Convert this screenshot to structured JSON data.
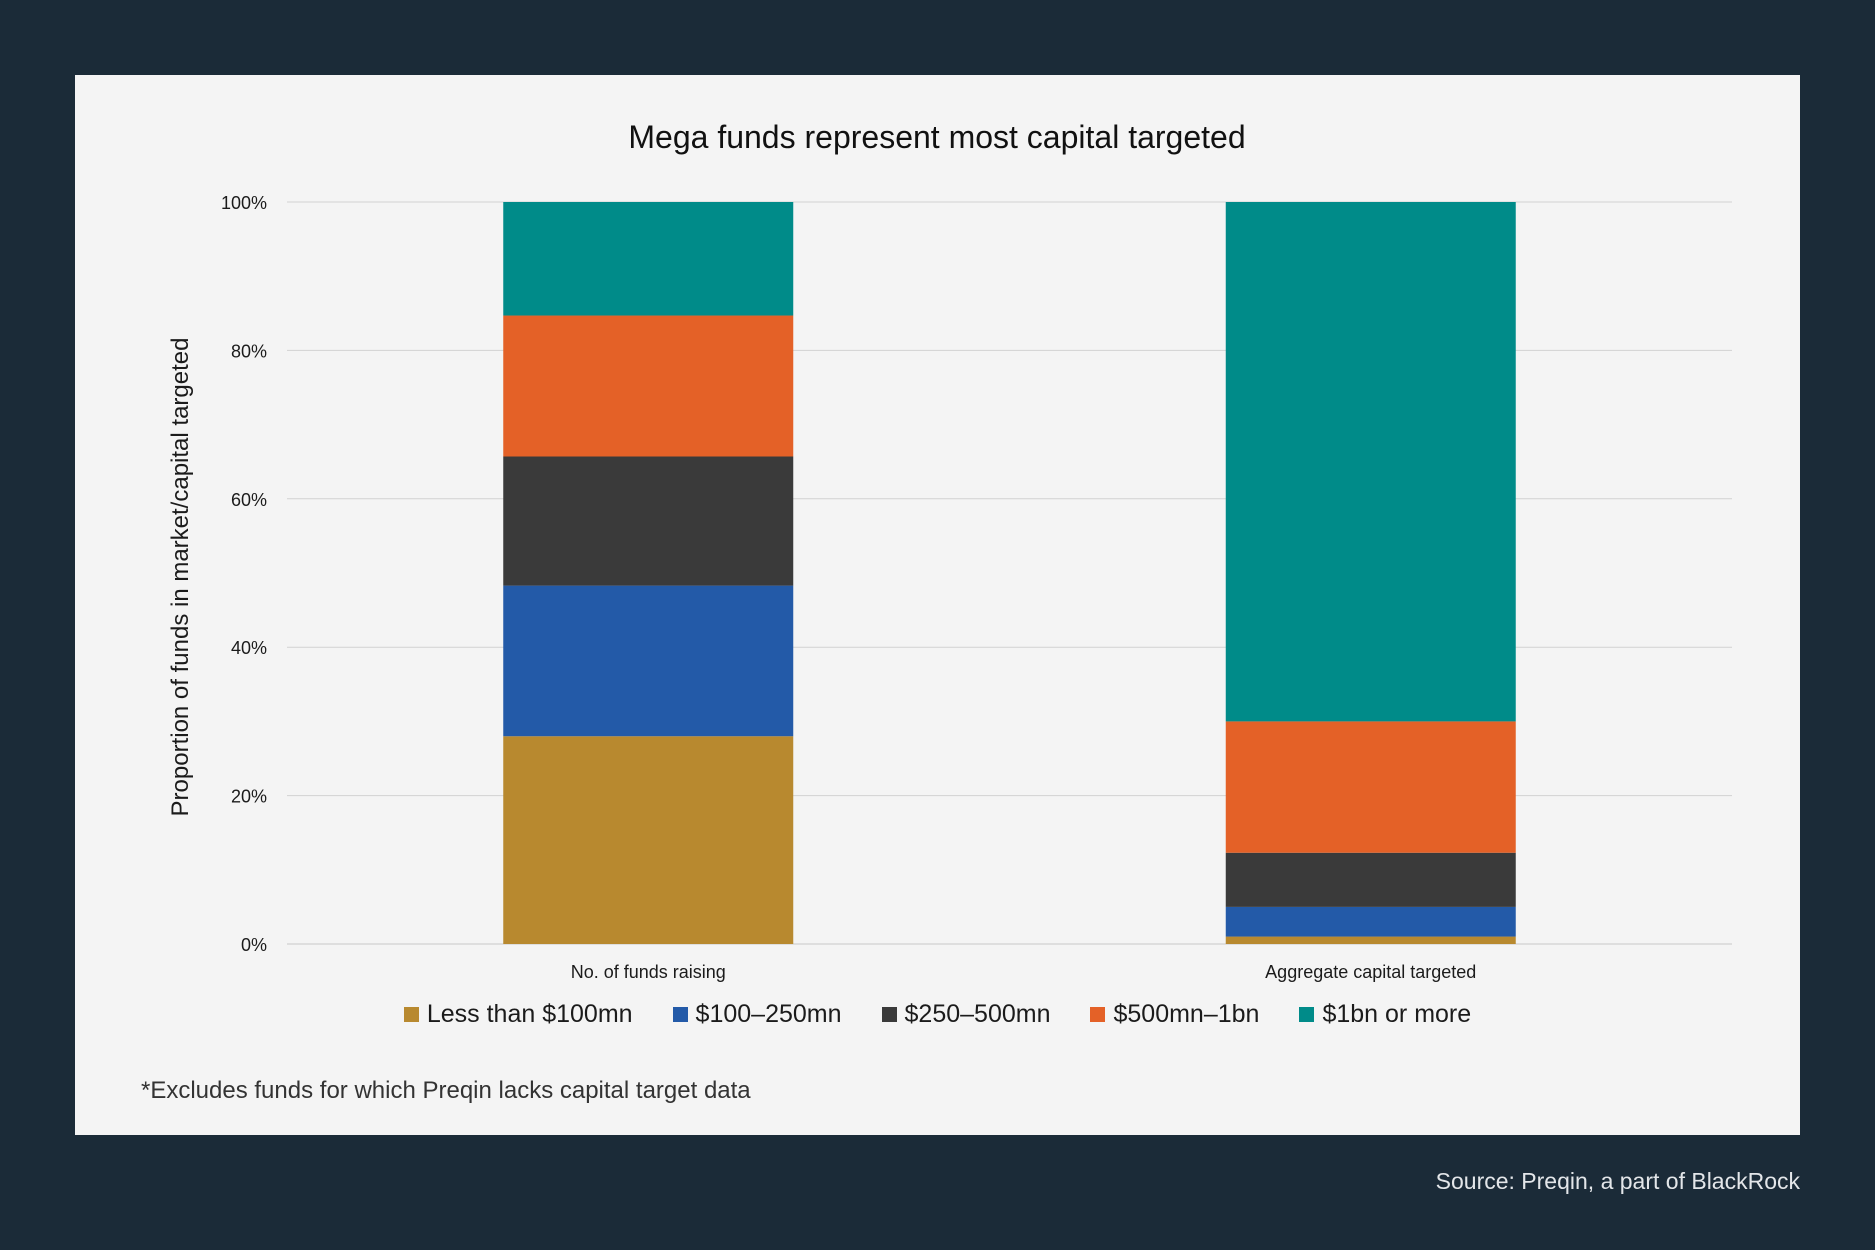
{
  "chart_data": {
    "type": "bar",
    "stacked": true,
    "title": "Mega funds represent most capital targeted",
    "ylabel": "Proportion of funds in market/capital targeted",
    "xlabel": "",
    "ylim": [
      0,
      100
    ],
    "yticks": [
      "0%",
      "20%",
      "40%",
      "60%",
      "80%",
      "100%"
    ],
    "categories": [
      "No. of funds raising",
      "Aggregate capital targeted"
    ],
    "series": [
      {
        "name": "Less than $100mn",
        "color": "#b8892f",
        "values": [
          28,
          1
        ]
      },
      {
        "name": "$100–250mn",
        "color": "#235aa8",
        "values": [
          20.3,
          4
        ]
      },
      {
        "name": "$250–500mn",
        "color": "#3a3a3a",
        "values": [
          17.4,
          7.3
        ]
      },
      {
        "name": "$500mn–1bn",
        "color": "#e46127",
        "values": [
          19,
          17.7
        ]
      },
      {
        "name": "$1bn or more",
        "color": "#008b89",
        "values": [
          15.3,
          70
        ]
      }
    ],
    "grid": true,
    "legend": "bottom"
  },
  "footnote": "*Excludes funds for which Preqin lacks capital target data",
  "source": "Source: Preqin, a part of BlackRock"
}
